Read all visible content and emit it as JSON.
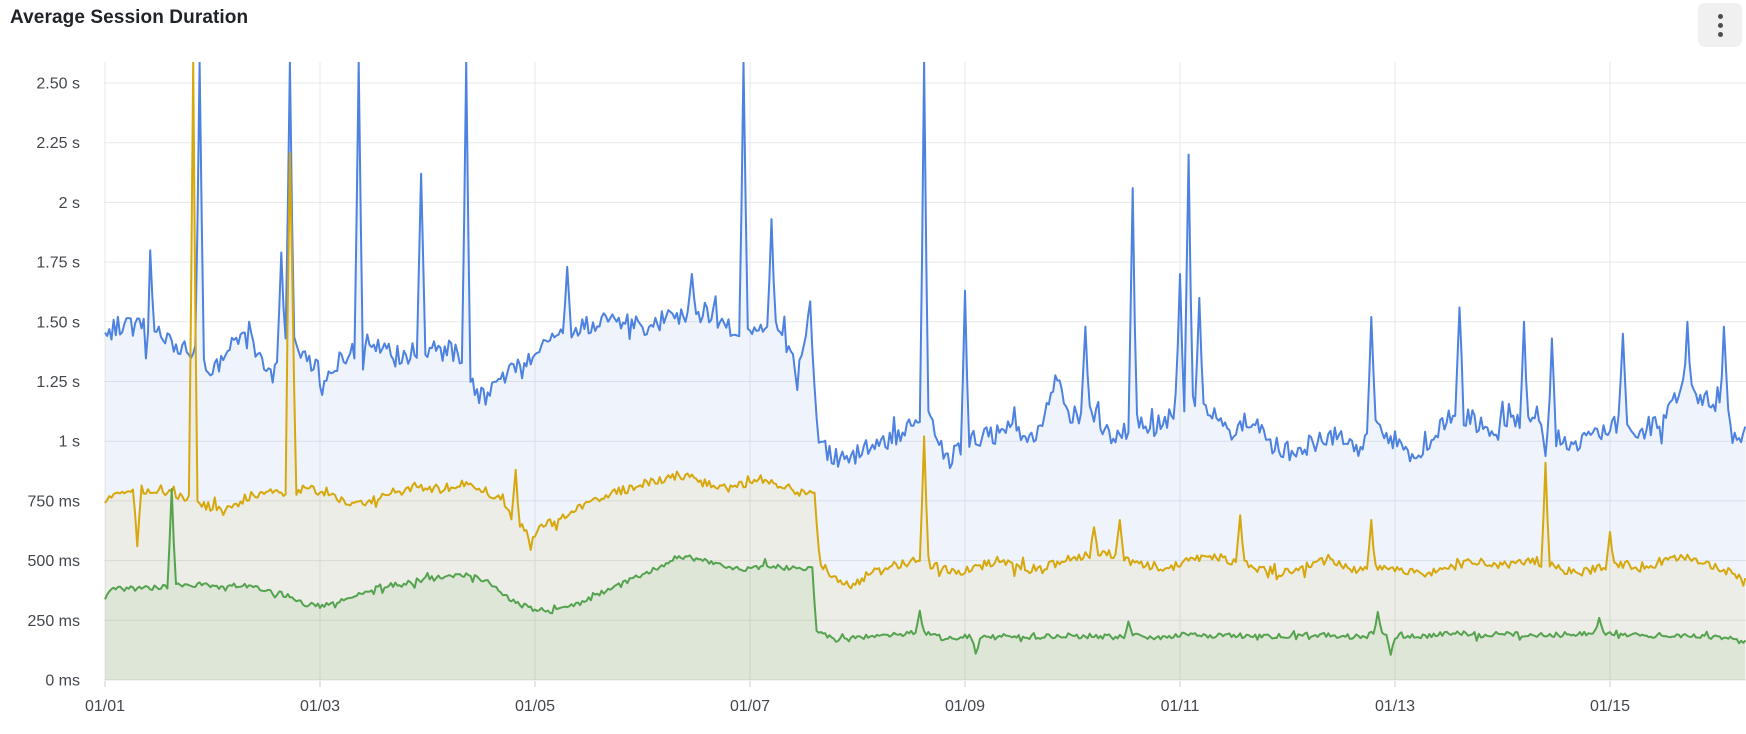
{
  "panel": {
    "title": "Average Session Duration",
    "menu_icon": "kebab-menu-icon"
  },
  "colors": {
    "background": "#ffffff",
    "title_text": "#1f2227",
    "axis_text": "#43474d",
    "gridline": "#e7e8ea",
    "tick_mark": "#cbcdd0",
    "series_a_line": "#4d82e0",
    "series_b_line": "#d6a80d",
    "series_c_line": "#55a34f"
  },
  "chart_data": {
    "type": "line",
    "title": "Average Session Duration",
    "xlabel": "",
    "ylabel": "",
    "unit": "duration (s / ms)",
    "legend": "none",
    "grid": "on",
    "ylim_ms": [
      0,
      2588
    ],
    "x_domain_days": [
      0,
      15.27
    ],
    "sample_step_days": 0.02,
    "seed": 20240116,
    "y_ticks": [
      {
        "label": "2.50 s",
        "ms": 2500
      },
      {
        "label": "2.25 s",
        "ms": 2250
      },
      {
        "label": "2 s",
        "ms": 2000
      },
      {
        "label": "1.75 s",
        "ms": 1750
      },
      {
        "label": "1.50 s",
        "ms": 1500
      },
      {
        "label": "1.25 s",
        "ms": 1250
      },
      {
        "label": "1 s",
        "ms": 1000
      },
      {
        "label": "750 ms",
        "ms": 750
      },
      {
        "label": "500 ms",
        "ms": 500
      },
      {
        "label": "250 ms",
        "ms": 250
      },
      {
        "label": "0 ms",
        "ms": 0
      }
    ],
    "x_ticks": [
      {
        "label": "01/01",
        "day": 0
      },
      {
        "label": "01/03",
        "day": 2
      },
      {
        "label": "01/05",
        "day": 4
      },
      {
        "label": "01/07",
        "day": 6
      },
      {
        "label": "01/09",
        "day": 8
      },
      {
        "label": "01/11",
        "day": 10
      },
      {
        "label": "01/13",
        "day": 12
      },
      {
        "label": "01/15",
        "day": 14
      }
    ],
    "series": [
      {
        "name": "series-a-blue",
        "color": "#4d82e0",
        "fill": "rgba(77,130,224,0.09)",
        "line_width": 2,
        "noise_ms": 42,
        "keypoints": [
          [
            0,
            1440
          ],
          [
            0.1,
            1480
          ],
          [
            0.35,
            1500
          ],
          [
            0.6,
            1420
          ],
          [
            0.8,
            1390
          ],
          [
            1.0,
            1280
          ],
          [
            1.15,
            1400
          ],
          [
            1.35,
            1420
          ],
          [
            1.55,
            1270
          ],
          [
            1.7,
            1440
          ],
          [
            1.9,
            1350
          ],
          [
            2.05,
            1230
          ],
          [
            2.2,
            1350
          ],
          [
            2.45,
            1420
          ],
          [
            2.6,
            1380
          ],
          [
            2.75,
            1340
          ],
          [
            2.9,
            1380
          ],
          [
            3.1,
            1400
          ],
          [
            3.3,
            1360
          ],
          [
            3.5,
            1170
          ],
          [
            3.7,
            1270
          ],
          [
            3.9,
            1340
          ],
          [
            4.1,
            1400
          ],
          [
            4.4,
            1480
          ],
          [
            4.7,
            1500
          ],
          [
            5.0,
            1480
          ],
          [
            5.3,
            1520
          ],
          [
            5.6,
            1540
          ],
          [
            5.8,
            1470
          ],
          [
            6.0,
            1430
          ],
          [
            6.15,
            1500
          ],
          [
            6.3,
            1450
          ],
          [
            6.45,
            1300
          ],
          [
            6.56,
            1550
          ],
          [
            6.63,
            1000
          ],
          [
            6.75,
            940
          ],
          [
            6.9,
            920
          ],
          [
            7.1,
            980
          ],
          [
            7.3,
            1000
          ],
          [
            7.5,
            1060
          ],
          [
            7.65,
            1100
          ],
          [
            7.85,
            910
          ],
          [
            8.0,
            1000
          ],
          [
            8.2,
            1020
          ],
          [
            8.45,
            1050
          ],
          [
            8.65,
            1000
          ],
          [
            8.84,
            1260
          ],
          [
            9.0,
            1060
          ],
          [
            9.15,
            1150
          ],
          [
            9.35,
            1020
          ],
          [
            9.55,
            1080
          ],
          [
            9.75,
            1050
          ],
          [
            9.95,
            1120
          ],
          [
            10.1,
            1180
          ],
          [
            10.3,
            1120
          ],
          [
            10.5,
            1040
          ],
          [
            10.7,
            1070
          ],
          [
            10.9,
            980
          ],
          [
            11.1,
            940
          ],
          [
            11.3,
            1030
          ],
          [
            11.5,
            1010
          ],
          [
            11.65,
            960
          ],
          [
            11.8,
            1090
          ],
          [
            12.0,
            1000
          ],
          [
            12.2,
            900
          ],
          [
            12.35,
            1030
          ],
          [
            12.55,
            1120
          ],
          [
            12.7,
            1100
          ],
          [
            12.9,
            1020
          ],
          [
            13.1,
            1100
          ],
          [
            13.3,
            1060
          ],
          [
            13.5,
            1010
          ],
          [
            13.7,
            980
          ],
          [
            13.9,
            1040
          ],
          [
            14.1,
            1080
          ],
          [
            14.3,
            1040
          ],
          [
            14.5,
            1100
          ],
          [
            14.7,
            1220
          ],
          [
            14.9,
            1180
          ],
          [
            15.1,
            1100
          ],
          [
            15.2,
            980
          ],
          [
            15.27,
            1050
          ]
        ],
        "spikes": [
          [
            0.4,
            1180
          ],
          [
            0.42,
            1800
          ],
          [
            0.87,
            2588
          ],
          [
            1.63,
            1790
          ],
          [
            1.71,
            2588
          ],
          [
            2.35,
            2588
          ],
          [
            2.93,
            2120
          ],
          [
            3.35,
            2588
          ],
          [
            4.3,
            1730
          ],
          [
            5.45,
            1700
          ],
          [
            5.93,
            2588
          ],
          [
            6.2,
            1930
          ],
          [
            7.61,
            2588
          ],
          [
            8.0,
            1630
          ],
          [
            9.12,
            1480
          ],
          [
            9.55,
            2060
          ],
          [
            10.0,
            1700
          ],
          [
            10.07,
            2200
          ],
          [
            10.18,
            1600
          ],
          [
            11.77,
            1520
          ],
          [
            12.6,
            1560
          ],
          [
            13.2,
            1500
          ],
          [
            13.45,
            1430
          ],
          [
            14.12,
            1450
          ],
          [
            14.72,
            1500
          ],
          [
            15.05,
            1480
          ]
        ]
      },
      {
        "name": "series-b-yellow",
        "color": "#d6a80d",
        "fill": "rgba(214,168,13,0.09)",
        "line_width": 2,
        "noise_ms": 19,
        "keypoints": [
          [
            0,
            745
          ],
          [
            0.1,
            780
          ],
          [
            0.3,
            800
          ],
          [
            0.5,
            790
          ],
          [
            0.7,
            770
          ],
          [
            0.9,
            740
          ],
          [
            1.1,
            700
          ],
          [
            1.3,
            760
          ],
          [
            1.5,
            780
          ],
          [
            1.7,
            790
          ],
          [
            1.9,
            800
          ],
          [
            2.1,
            780
          ],
          [
            2.3,
            730
          ],
          [
            2.5,
            760
          ],
          [
            2.7,
            790
          ],
          [
            2.9,
            810
          ],
          [
            3.1,
            800
          ],
          [
            3.3,
            820
          ],
          [
            3.5,
            800
          ],
          [
            3.7,
            760
          ],
          [
            3.85,
            640
          ],
          [
            4.0,
            620
          ],
          [
            4.15,
            660
          ],
          [
            4.35,
            700
          ],
          [
            4.55,
            760
          ],
          [
            4.75,
            790
          ],
          [
            4.95,
            810
          ],
          [
            5.15,
            840
          ],
          [
            5.35,
            860
          ],
          [
            5.55,
            830
          ],
          [
            5.75,
            800
          ],
          [
            5.95,
            820
          ],
          [
            6.1,
            840
          ],
          [
            6.3,
            820
          ],
          [
            6.45,
            780
          ],
          [
            6.6,
            800
          ],
          [
            6.65,
            480
          ],
          [
            6.8,
            430
          ],
          [
            6.95,
            400
          ],
          [
            7.1,
            440
          ],
          [
            7.25,
            470
          ],
          [
            7.45,
            490
          ],
          [
            7.6,
            520
          ],
          [
            7.75,
            470
          ],
          [
            7.9,
            450
          ],
          [
            8.1,
            470
          ],
          [
            8.3,
            500
          ],
          [
            8.5,
            480
          ],
          [
            8.7,
            460
          ],
          [
            8.9,
            500
          ],
          [
            9.1,
            520
          ],
          [
            9.3,
            540
          ],
          [
            9.5,
            500
          ],
          [
            9.7,
            480
          ],
          [
            9.9,
            470
          ],
          [
            10.1,
            500
          ],
          [
            10.3,
            520
          ],
          [
            10.5,
            500
          ],
          [
            10.7,
            480
          ],
          [
            10.9,
            440
          ],
          [
            11.1,
            460
          ],
          [
            11.3,
            500
          ],
          [
            11.5,
            480
          ],
          [
            11.7,
            460
          ],
          [
            11.9,
            480
          ],
          [
            12.1,
            460
          ],
          [
            12.3,
            440
          ],
          [
            12.5,
            470
          ],
          [
            12.7,
            500
          ],
          [
            12.9,
            480
          ],
          [
            13.1,
            490
          ],
          [
            13.3,
            500
          ],
          [
            13.5,
            470
          ],
          [
            13.7,
            450
          ],
          [
            13.9,
            470
          ],
          [
            14.1,
            490
          ],
          [
            14.3,
            470
          ],
          [
            14.5,
            500
          ],
          [
            14.7,
            520
          ],
          [
            14.9,
            490
          ],
          [
            15.1,
            450
          ],
          [
            15.27,
            405
          ]
        ],
        "spikes": [
          [
            0.3,
            560
          ],
          [
            0.82,
            2588
          ],
          [
            1.71,
            2588
          ],
          [
            1.74,
            1730
          ],
          [
            3.82,
            880
          ],
          [
            3.95,
            545
          ],
          [
            7.61,
            1020
          ],
          [
            9.2,
            640
          ],
          [
            9.45,
            670
          ],
          [
            10.55,
            690
          ],
          [
            11.77,
            670
          ],
          [
            13.4,
            910
          ],
          [
            14.0,
            620
          ]
        ]
      },
      {
        "name": "series-c-green",
        "color": "#55a34f",
        "fill": "rgba(85,163,79,0.09)",
        "line_width": 2,
        "noise_ms": 11,
        "keypoints": [
          [
            0,
            335
          ],
          [
            0.05,
            380
          ],
          [
            0.25,
            390
          ],
          [
            0.45,
            385
          ],
          [
            0.65,
            395
          ],
          [
            0.85,
            400
          ],
          [
            1.05,
            390
          ],
          [
            1.25,
            400
          ],
          [
            1.45,
            380
          ],
          [
            1.65,
            360
          ],
          [
            1.85,
            320
          ],
          [
            2.0,
            310
          ],
          [
            2.15,
            330
          ],
          [
            2.35,
            360
          ],
          [
            2.55,
            390
          ],
          [
            2.75,
            400
          ],
          [
            2.95,
            420
          ],
          [
            3.15,
            430
          ],
          [
            3.35,
            440
          ],
          [
            3.55,
            420
          ],
          [
            3.75,
            340
          ],
          [
            3.95,
            300
          ],
          [
            4.15,
            285
          ],
          [
            4.35,
            310
          ],
          [
            4.55,
            350
          ],
          [
            4.75,
            390
          ],
          [
            4.95,
            430
          ],
          [
            5.15,
            470
          ],
          [
            5.35,
            520
          ],
          [
            5.55,
            500
          ],
          [
            5.75,
            480
          ],
          [
            5.95,
            460
          ],
          [
            6.15,
            480
          ],
          [
            6.35,
            470
          ],
          [
            6.58,
            470
          ],
          [
            6.62,
            200
          ],
          [
            6.8,
            170
          ],
          [
            7.0,
            175
          ],
          [
            7.2,
            185
          ],
          [
            7.4,
            190
          ],
          [
            7.6,
            200
          ],
          [
            7.8,
            175
          ],
          [
            8.0,
            180
          ],
          [
            8.2,
            175
          ],
          [
            8.4,
            185
          ],
          [
            8.6,
            180
          ],
          [
            8.8,
            185
          ],
          [
            9.0,
            180
          ],
          [
            9.2,
            185
          ],
          [
            9.4,
            180
          ],
          [
            9.6,
            185
          ],
          [
            9.8,
            180
          ],
          [
            10.0,
            190
          ],
          [
            10.2,
            185
          ],
          [
            10.4,
            190
          ],
          [
            10.6,
            185
          ],
          [
            10.8,
            180
          ],
          [
            11.0,
            185
          ],
          [
            11.2,
            190
          ],
          [
            11.4,
            185
          ],
          [
            11.6,
            180
          ],
          [
            11.8,
            190
          ],
          [
            12.0,
            185
          ],
          [
            12.2,
            180
          ],
          [
            12.4,
            190
          ],
          [
            12.6,
            195
          ],
          [
            12.8,
            190
          ],
          [
            13.0,
            195
          ],
          [
            13.2,
            190
          ],
          [
            13.4,
            185
          ],
          [
            13.6,
            190
          ],
          [
            13.8,
            195
          ],
          [
            14.0,
            200
          ],
          [
            14.2,
            190
          ],
          [
            14.4,
            185
          ],
          [
            14.6,
            190
          ],
          [
            14.8,
            185
          ],
          [
            15.0,
            180
          ],
          [
            15.1,
            175
          ],
          [
            15.27,
            155
          ]
        ],
        "spikes": [
          [
            0.62,
            800
          ],
          [
            7.58,
            290
          ],
          [
            8.09,
            110
          ],
          [
            9.53,
            245
          ],
          [
            11.83,
            285
          ],
          [
            11.95,
            105
          ],
          [
            13.9,
            260
          ]
        ]
      }
    ]
  }
}
